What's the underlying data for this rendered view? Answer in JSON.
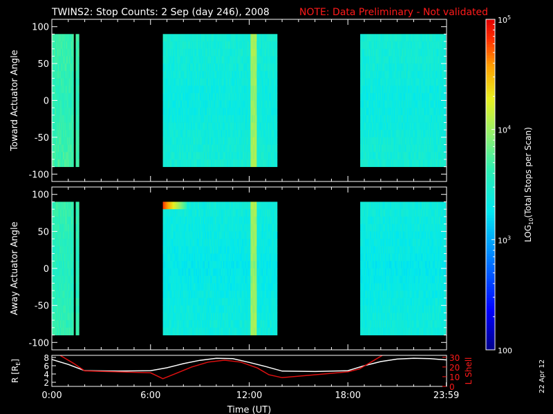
{
  "header": {
    "title": "TWINS2: Stop Counts:  2 Sep (day 246), 2008",
    "note": "NOTE: Data Preliminary - Not validated"
  },
  "footer": {
    "date_stamp": "22 Apr 12"
  },
  "colors": {
    "background": "#000000",
    "foreground": "#ffffff",
    "note": "#ff1a1a",
    "lshell_line": "#e01010"
  },
  "chart_data": [
    {
      "type": "heatmap",
      "name": "top-panel",
      "ylabel": "Toward Actuator Angle",
      "ylim": [
        -110,
        110
      ],
      "yticks": [
        100,
        50,
        0,
        -50,
        -100
      ],
      "ytick_labels": [
        "100",
        "50",
        "0",
        "-50",
        "-100"
      ],
      "xlim_hours": [
        0,
        24
      ],
      "data_ylim": [
        -90,
        90
      ],
      "data_blocks_hours": [
        [
          0,
          1.3
        ],
        [
          1.45,
          1.65
        ],
        [
          6.75,
          13.7
        ],
        [
          18.75,
          23.95
        ]
      ],
      "level_log10": {
        "base": 3.35,
        "early": 3.6,
        "band_12h": 3.95
      },
      "hot_spot": null
    },
    {
      "type": "heatmap",
      "name": "bottom-panel",
      "ylabel": "Away Actuator Angle",
      "ylim": [
        -110,
        110
      ],
      "yticks": [
        100,
        50,
        0,
        -50,
        -100
      ],
      "ytick_labels": [
        "100",
        "50",
        "0",
        "-50",
        "-100"
      ],
      "xlim_hours": [
        0,
        24
      ],
      "data_ylim": [
        -90,
        90
      ],
      "data_blocks_hours": [
        [
          0,
          1.3
        ],
        [
          1.45,
          1.65
        ],
        [
          6.75,
          13.7
        ],
        [
          18.75,
          23.95
        ]
      ],
      "level_log10": {
        "base": 3.3,
        "early": 3.55,
        "band_12h": 3.95
      },
      "hot_spot": {
        "x_hours": [
          6.75,
          8.2
        ],
        "y": [
          72,
          90
        ],
        "peak_log10": 4.8
      }
    },
    {
      "type": "line",
      "name": "orbit-panel",
      "ylabel_left": "R [R",
      "ylabel_left_sub": "E",
      "ylabel_left_end": "]",
      "ylabel_right": "L Shell",
      "left_ylim": [
        1,
        8.5
      ],
      "left_yticks": [
        2,
        4,
        6,
        8
      ],
      "left_ytick_labels": [
        "2",
        "4",
        "6",
        "8"
      ],
      "right_ylim": [
        0,
        32
      ],
      "right_yticks": [
        0,
        10,
        20,
        30
      ],
      "right_ytick_labels": [
        "0",
        "10",
        "20",
        "30"
      ],
      "xlabel": "Time (UT)",
      "xlim_hours": [
        0,
        24
      ],
      "xticks_hours": [
        0,
        6,
        12,
        18,
        23.983
      ],
      "xtick_labels": [
        "0:00",
        "6:00",
        "12:00",
        "18:00",
        "23:59"
      ],
      "series": [
        {
          "axis": "left",
          "color": "#ffffff",
          "x": [
            0,
            1,
            2,
            4,
            6,
            7,
            8,
            9,
            10,
            11,
            12,
            13,
            14,
            16,
            18,
            19,
            20,
            21,
            22,
            23,
            24
          ],
          "y": [
            7.5,
            6.3,
            4.8,
            4.7,
            4.8,
            5.5,
            6.5,
            7.3,
            7.8,
            7.7,
            6.8,
            5.8,
            4.7,
            4.6,
            4.8,
            6.0,
            7.0,
            7.6,
            7.8,
            7.7,
            7.4
          ]
        },
        {
          "axis": "right",
          "color": "#e01010",
          "x": [
            0.5,
            1.3,
            2.0,
            4.0,
            6.0,
            6.75,
            7.5,
            8.5,
            9.5,
            10.5,
            11.5,
            12.5,
            13.2,
            14.0,
            16.0,
            18.0,
            18.7,
            19.3,
            20.1
          ],
          "y": [
            32,
            24,
            16,
            15,
            14,
            8,
            13,
            20,
            25,
            27,
            25,
            19,
            12,
            9,
            12,
            15,
            18,
            24,
            32
          ]
        }
      ]
    },
    {
      "type": "colorbar",
      "name": "colorbar",
      "label_prefix": "LOG",
      "label_sub": "10",
      "label_suffix": "(Total Stops per Scan)",
      "range_log10": [
        2,
        5
      ],
      "ticks": [
        {
          "log": 5,
          "base": "10",
          "exp": "5",
          "plain": ""
        },
        {
          "log": 4,
          "base": "10",
          "exp": "4",
          "plain": ""
        },
        {
          "log": 3,
          "base": "10",
          "exp": "3",
          "plain": ""
        },
        {
          "log": 2,
          "base": "",
          "exp": "",
          "plain": "100"
        }
      ]
    }
  ]
}
